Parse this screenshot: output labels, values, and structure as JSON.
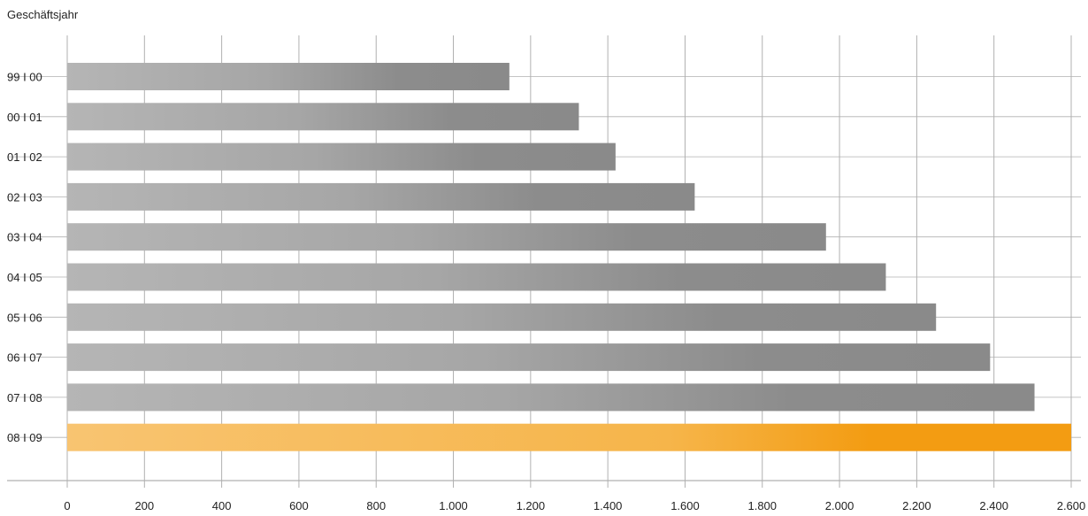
{
  "chart_data": {
    "type": "bar",
    "orientation": "horizontal",
    "axis_title": "Geschäftsjahr",
    "categories": [
      "99 I 00",
      "00 I 01",
      "01 I 02",
      "02 I 03",
      "03 I 04",
      "04 I 05",
      "05 I 06",
      "06 I 07",
      "07 I 08",
      "08 I 09"
    ],
    "values": [
      1145,
      1325,
      1420,
      1625,
      1965,
      2120,
      2250,
      2390,
      2505,
      2600
    ],
    "xlim": [
      0,
      2600
    ],
    "xticks": [
      0,
      200,
      400,
      600,
      800,
      1000,
      1200,
      1400,
      1600,
      1800,
      2000,
      2200,
      2400,
      2600
    ],
    "xtick_labels": [
      "0",
      "200",
      "400",
      "600",
      "800",
      "1.000",
      "1.200",
      "1.400",
      "1.600",
      "1.800",
      "2.000",
      "2.200",
      "2.400",
      "2.600"
    ],
    "grid": true,
    "colors": {
      "bar": "#8c8c8c",
      "bar_light": "#b5b5b5",
      "highlight": "#f39c12",
      "highlight_light": "#f8c471",
      "grid": "#b0b0b0"
    },
    "highlight_category": "08 I 09"
  }
}
